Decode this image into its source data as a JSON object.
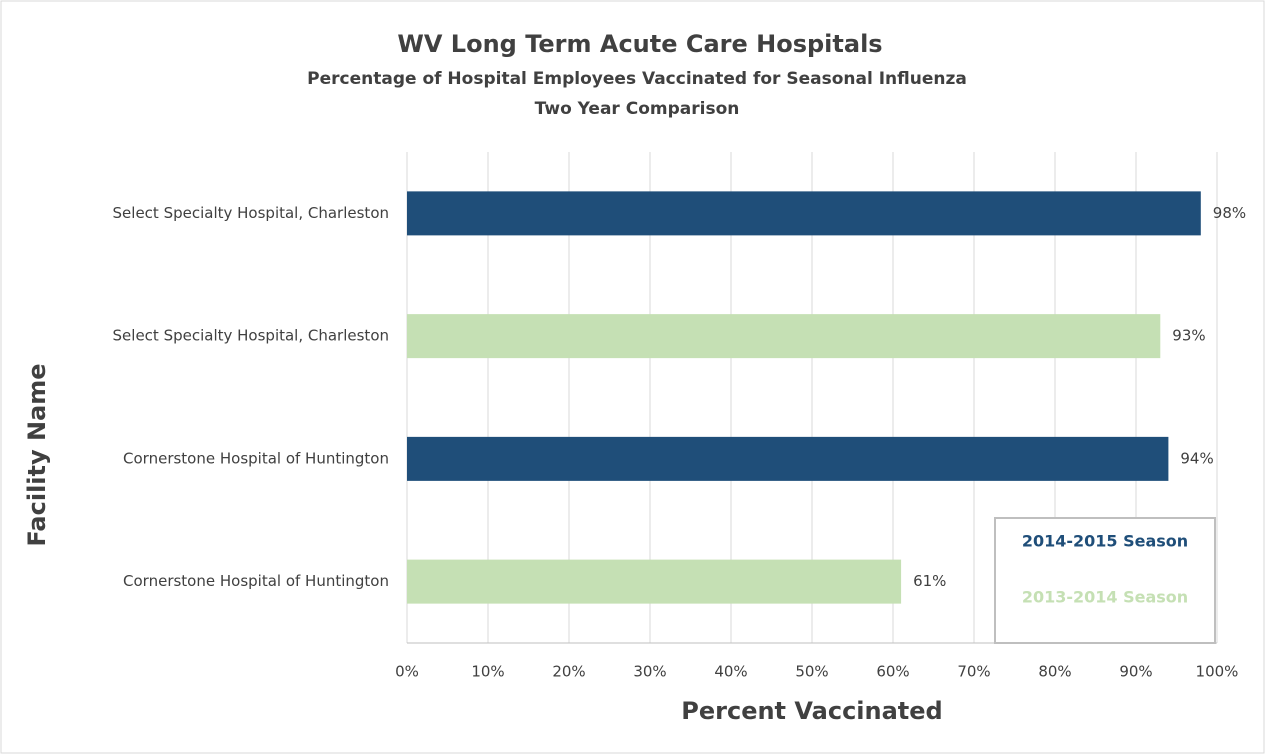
{
  "chart_data": {
    "type": "hbar",
    "title": "WV Long Term Acute Care Hospitals",
    "subtitle": "Percentage of Hospital Employees Vaccinated for Seasonal Influenza",
    "subtitle2": "Two Year Comparison",
    "x_label": "Percent Vaccinated",
    "y_label": "Facility Name",
    "categories": [
      "Select Specialty Hospital, Charleston",
      "Select Specialty Hospital, Charleston",
      "Cornerstone Hospital of Huntington",
      "Cornerstone Hospital of Huntington"
    ],
    "series": [
      {
        "name": "2014-2015 Season",
        "color": "#1f4e79",
        "values": [
          98,
          null,
          94,
          null
        ],
        "value_labels": [
          "98%",
          null,
          "94%",
          null
        ]
      },
      {
        "name": "2013-2014 Season",
        "color": "#c5e0b4",
        "values": [
          null,
          93,
          null,
          61
        ],
        "value_labels": [
          null,
          "93%",
          null,
          "61%"
        ]
      }
    ],
    "xlim": [
      0,
      100
    ],
    "xticks": [
      {
        "value": 0,
        "label": "0%"
      },
      {
        "value": 10,
        "label": "10%"
      },
      {
        "value": 20,
        "label": "20%"
      },
      {
        "value": 30,
        "label": "30%"
      },
      {
        "value": 40,
        "label": "40%"
      },
      {
        "value": 50,
        "label": "50%"
      },
      {
        "value": 60,
        "label": "60%"
      },
      {
        "value": 70,
        "label": "70%"
      },
      {
        "value": 80,
        "label": "80%"
      },
      {
        "value": 90,
        "label": "90%"
      },
      {
        "value": 100,
        "label": "100%"
      }
    ],
    "grid": true,
    "legend": "lower right"
  }
}
